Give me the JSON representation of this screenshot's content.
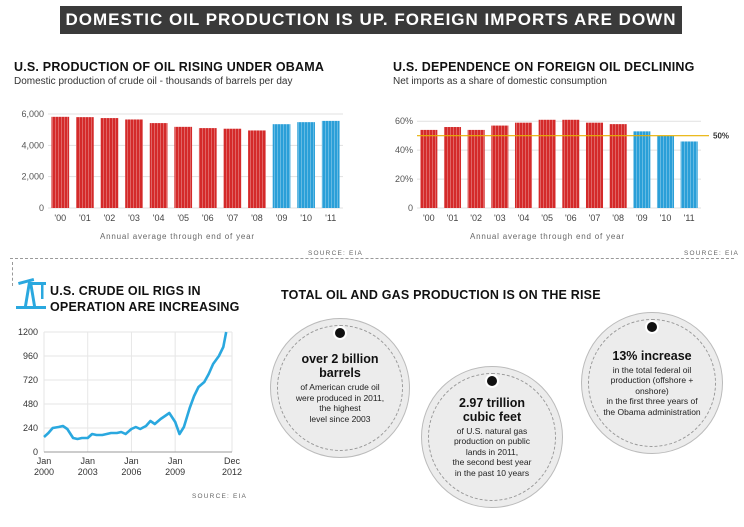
{
  "banner": "DOMESTIC OIL PRODUCTION IS UP. FOREIGN IMPORTS ARE DOWN",
  "panel1": {
    "title": "U.S. PRODUCTION OF OIL RISING UNDER OBAMA",
    "subtitle": "Domestic production of crude oil - thousands of barrels per day",
    "note": "Annual average through end of year",
    "source": "SOURCE: EIA"
  },
  "panel2": {
    "title": "U.S. DEPENDENCE ON FOREIGN OIL DECLINING",
    "subtitle": "Net imports as a share of domestic consumption",
    "note": "Annual average through end of year",
    "source": "SOURCE: EIA",
    "ref_label": "50%"
  },
  "panel3": {
    "title_line1": "U.S. CRUDE OIL RIGS IN",
    "title_line2": "OPERATION ARE INCREASING",
    "source": "SOURCE: EIA"
  },
  "panel4": {
    "title": "TOTAL OIL AND GAS PRODUCTION IS ON THE RISE",
    "bubble1": {
      "big1": "over 2 billion",
      "big2": "barrels",
      "small1": "of American crude oil",
      "small2": "were produced in 2011,",
      "small3": "the highest",
      "small4": "level since 2003"
    },
    "bubble2": {
      "big1": "2.97 trillion",
      "big2": "cubic feet",
      "small1": "of U.S. natural gas",
      "small2": "production on public",
      "small3": "lands in 2011,",
      "small4": "the second best year",
      "small5": "in the past 10 years"
    },
    "bubble3": {
      "big1": "13% increase",
      "small1": "in the total federal oil",
      "small2": "production (offshore + onshore)",
      "small3": "in the first three years of",
      "small4": "the Obama administration"
    }
  },
  "colors": {
    "red": "#d42a2a",
    "blue": "#2a9fd8",
    "line": "#2aa8df",
    "ref": "#e8b000"
  },
  "chart_data": [
    {
      "type": "bar",
      "title": "U.S. PRODUCTION OF OIL RISING UNDER OBAMA",
      "categories": [
        "'00",
        "'01",
        "'02",
        "'03",
        "'04",
        "'05",
        "'06",
        "'07",
        "'08",
        "'09",
        "'10",
        "'11"
      ],
      "values": [
        5820,
        5800,
        5740,
        5650,
        5420,
        5180,
        5100,
        5060,
        4950,
        5350,
        5480,
        5560
      ],
      "ylim": [
        0,
        6000
      ],
      "yticks": [
        "0",
        "2,000",
        "4,000",
        "6,000"
      ],
      "ytick_values": [
        0,
        2000,
        4000,
        6000
      ]
    },
    {
      "type": "bar",
      "title": "U.S. DEPENDENCE ON FOREIGN OIL DECLINING",
      "categories": [
        "'00",
        "'01",
        "'02",
        "'03",
        "'04",
        "'05",
        "'06",
        "'07",
        "'08",
        "'09",
        "'10",
        "'11"
      ],
      "values": [
        54,
        56,
        54,
        57,
        59,
        61,
        61,
        59,
        58,
        53,
        50,
        46
      ],
      "ylim": [
        0,
        65
      ],
      "yticks": [
        "0",
        "20%",
        "40%",
        "60%"
      ],
      "ytick_values": [
        0,
        20,
        40,
        60
      ],
      "reference": 50
    },
    {
      "type": "line",
      "title": "U.S. CRUDE OIL RIGS IN OPERATION ARE INCREASING",
      "x": [
        2000.0,
        2000.3,
        2000.6,
        2001.0,
        2001.3,
        2001.6,
        2002.0,
        2002.3,
        2002.6,
        2003.0,
        2003.3,
        2003.6,
        2004.0,
        2004.3,
        2004.6,
        2005.0,
        2005.3,
        2005.6,
        2006.0,
        2006.3,
        2006.6,
        2007.0,
        2007.3,
        2007.6,
        2008.0,
        2008.3,
        2008.6,
        2009.0,
        2009.3,
        2009.6,
        2010.0,
        2010.3,
        2010.6,
        2011.0,
        2011.3,
        2011.6,
        2012.0,
        2012.3,
        2012.5
      ],
      "y": [
        150,
        190,
        240,
        250,
        260,
        230,
        140,
        130,
        140,
        140,
        180,
        170,
        170,
        180,
        190,
        190,
        200,
        180,
        230,
        250,
        230,
        260,
        310,
        280,
        330,
        360,
        390,
        300,
        180,
        250,
        440,
        560,
        650,
        700,
        780,
        880,
        960,
        1050,
        1200
      ],
      "ylim": [
        0,
        1200
      ],
      "yticks": [
        "0",
        "240",
        "480",
        "720",
        "960",
        "1200"
      ],
      "ytick_values": [
        0,
        240,
        480,
        720,
        960,
        1200
      ],
      "xlim": [
        2000,
        2012.9
      ],
      "xtick_line1": [
        "Jan",
        "Jan",
        "Jan",
        "Jan",
        "Dec"
      ],
      "xtick_line2": [
        "2000",
        "2003",
        "2006",
        "2009",
        "2012"
      ],
      "xtick_values": [
        2000,
        2003,
        2006,
        2009,
        2012.9
      ]
    }
  ]
}
